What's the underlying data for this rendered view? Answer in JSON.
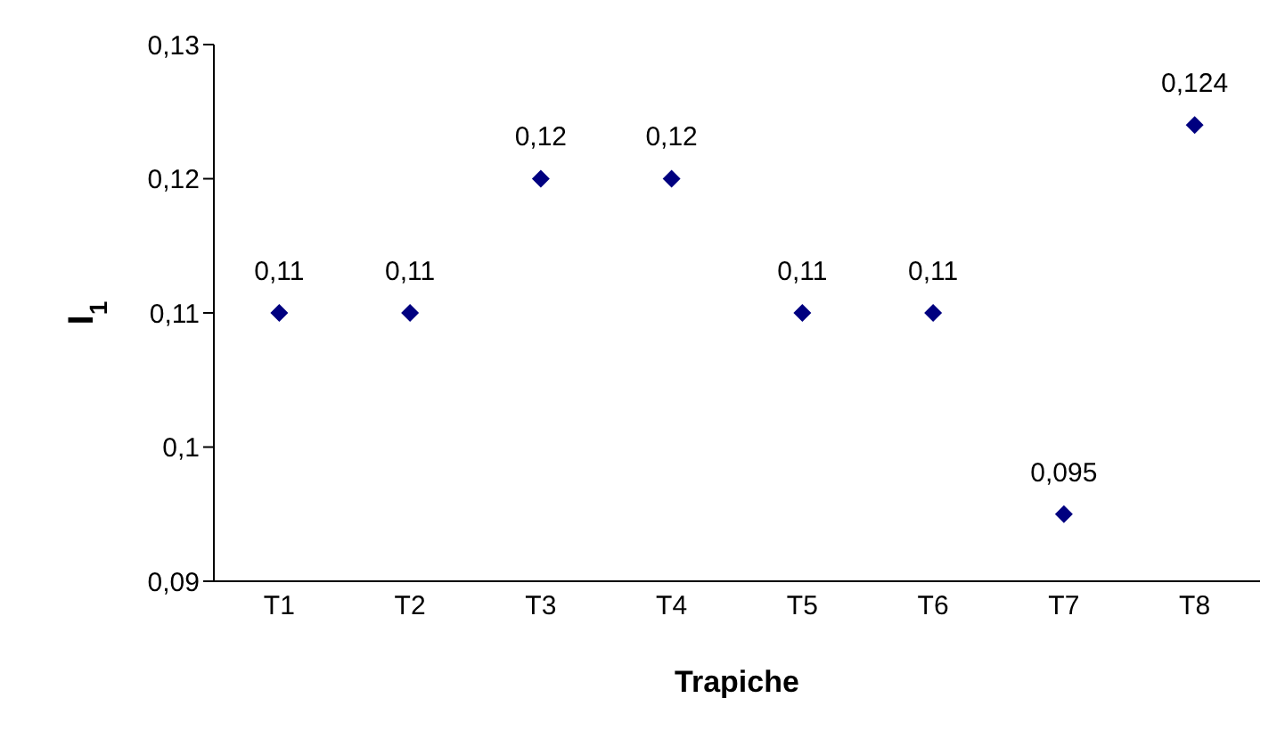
{
  "chart_data": {
    "type": "scatter",
    "xlabel": "Trapiche",
    "ylabel": "I$_{1}$",
    "categories": [
      "T1",
      "T2",
      "T3",
      "T4",
      "T5",
      "T6",
      "T7",
      "T8"
    ],
    "values": [
      0.11,
      0.11,
      0.12,
      0.12,
      0.11,
      0.11,
      0.095,
      0.124
    ],
    "value_labels": [
      "0,11",
      "0,11",
      "0,12",
      "0,12",
      "0,11",
      "0,11",
      "0,095",
      "0,124"
    ],
    "color": "#000080",
    "marker": "diamond",
    "ylim": [
      0.09,
      0.13
    ],
    "yticks": [
      {
        "value": 0.09,
        "label": "0,09"
      },
      {
        "value": 0.1,
        "label": "0,1"
      },
      {
        "value": 0.11,
        "label": "0,11"
      },
      {
        "value": 0.12,
        "label": "0,12"
      },
      {
        "value": 0.13,
        "label": "0,13"
      }
    ],
    "grid": false
  }
}
